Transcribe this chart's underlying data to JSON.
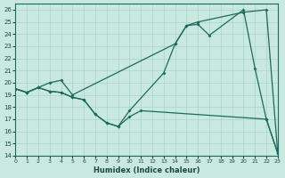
{
  "xlabel": "Humidex (Indice chaleur)",
  "bg_color": "#c8e8e0",
  "line_color": "#1a6b5a",
  "grid_color": "#a8d4cc",
  "xlim": [
    0,
    23
  ],
  "ylim": [
    14,
    26.5
  ],
  "xticks": [
    0,
    1,
    2,
    3,
    4,
    5,
    6,
    7,
    8,
    9,
    10,
    11,
    12,
    13,
    14,
    15,
    16,
    17,
    18,
    19,
    20,
    21,
    22,
    23
  ],
  "yticks": [
    14,
    15,
    16,
    17,
    18,
    19,
    20,
    21,
    22,
    23,
    24,
    25,
    26
  ],
  "line1_x": [
    0,
    1,
    2,
    3,
    4,
    5,
    14,
    15,
    16,
    17,
    20,
    21,
    22,
    23
  ],
  "line1_y": [
    19.5,
    19.2,
    19.6,
    20.0,
    20.2,
    19.0,
    23.2,
    24.7,
    24.8,
    23.9,
    26.0,
    21.2,
    17.0,
    14.2
  ],
  "line2_x": [
    0,
    1,
    2,
    3,
    4,
    5,
    6,
    7,
    8,
    9,
    10,
    13,
    14,
    15,
    16,
    20,
    22,
    23
  ],
  "line2_y": [
    19.5,
    19.2,
    19.6,
    19.3,
    19.2,
    18.8,
    18.6,
    17.4,
    16.7,
    16.4,
    17.7,
    20.8,
    23.2,
    24.7,
    25.0,
    25.8,
    26.0,
    14.2
  ],
  "line3_x": [
    0,
    1,
    2,
    3,
    4,
    5,
    6,
    7,
    8,
    9,
    10,
    11,
    22,
    23
  ],
  "line3_y": [
    19.5,
    19.2,
    19.6,
    19.3,
    19.2,
    18.8,
    18.6,
    17.4,
    16.7,
    16.4,
    17.2,
    17.7,
    17.0,
    14.2
  ]
}
